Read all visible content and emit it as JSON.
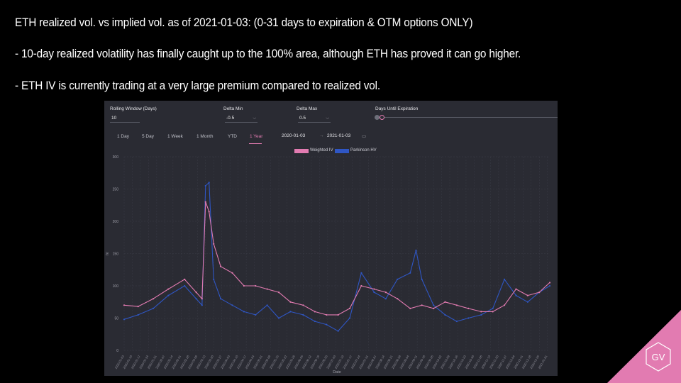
{
  "slide": {
    "line1": "ETH realized vol. vs implied vol. as of 2021-01-03: (0-31 days to expiration & OTM options ONLY)",
    "line2": "- 10-day realized volatility has finally caught up to the 100% area, although ETH has proved it can go higher.",
    "line3": "- ETH IV is currently trading at a very large premium compared to realized vol."
  },
  "controls": {
    "rolling_window_label": "Rolling Window (Days)",
    "rolling_window_value": "10",
    "delta_min_label": "Delta Min",
    "delta_min_value": "-0.5",
    "delta_max_label": "Delta Max",
    "delta_max_value": "0.5",
    "days_expiration_label": "Days Until Expiration"
  },
  "tabs": [
    "1 Day",
    "5 Day",
    "1 Week",
    "1 Month",
    "YTD",
    "1 Year"
  ],
  "active_tab": "1 Year",
  "date_range": {
    "start": "2020-01-03",
    "end": "2021-01-03"
  },
  "colors": {
    "weighted_iv": "#e27bb1",
    "parkinson_hv": "#2f56c4",
    "panel_bg": "#2a2b33",
    "accent": "#e27bb1"
  },
  "logo": {
    "text": "GV"
  },
  "chart_data": {
    "type": "line",
    "xlabel": "Date",
    "ylabel": "IV",
    "ylim": [
      0,
      300
    ],
    "yticks": [
      0,
      50,
      100,
      150,
      200,
      250,
      300
    ],
    "grid": true,
    "legend_position": "top-center",
    "x_range": [
      "2020-01-03",
      "2021-01-03"
    ],
    "series": [
      {
        "name": "Weighted IV",
        "x": [
          "2020-01-03",
          "2020-01-15",
          "2020-01-28",
          "2020-02-10",
          "2020-02-24",
          "2020-03-05",
          "2020-03-10",
          "2020-03-13",
          "2020-03-16",
          "2020-03-20",
          "2020-03-26",
          "2020-04-05",
          "2020-04-15",
          "2020-04-25",
          "2020-05-05",
          "2020-05-15",
          "2020-05-25",
          "2020-06-05",
          "2020-06-15",
          "2020-06-25",
          "2020-07-05",
          "2020-07-15",
          "2020-07-25",
          "2020-08-05",
          "2020-08-15",
          "2020-08-25",
          "2020-09-05",
          "2020-09-15",
          "2020-09-25",
          "2020-10-05",
          "2020-10-15",
          "2020-10-25",
          "2020-11-05",
          "2020-11-15",
          "2020-11-25",
          "2020-12-05",
          "2020-12-15",
          "2020-12-25",
          "2021-01-03"
        ],
        "values": [
          70,
          68,
          80,
          95,
          110,
          90,
          80,
          230,
          215,
          165,
          130,
          120,
          100,
          100,
          95,
          90,
          75,
          70,
          60,
          55,
          55,
          65,
          100,
          95,
          90,
          80,
          65,
          70,
          65,
          75,
          70,
          65,
          60,
          60,
          70,
          95,
          85,
          90,
          105
        ]
      },
      {
        "name": "Parkinson HV",
        "x": [
          "2020-01-03",
          "2020-01-15",
          "2020-01-28",
          "2020-02-10",
          "2020-02-24",
          "2020-03-05",
          "2020-03-10",
          "2020-03-13",
          "2020-03-16",
          "2020-03-20",
          "2020-03-26",
          "2020-04-05",
          "2020-04-15",
          "2020-04-25",
          "2020-05-05",
          "2020-05-15",
          "2020-05-25",
          "2020-06-05",
          "2020-06-15",
          "2020-06-25",
          "2020-07-05",
          "2020-07-15",
          "2020-07-25",
          "2020-08-05",
          "2020-08-15",
          "2020-08-25",
          "2020-09-05",
          "2020-09-10",
          "2020-09-15",
          "2020-09-25",
          "2020-10-05",
          "2020-10-15",
          "2020-10-25",
          "2020-11-05",
          "2020-11-15",
          "2020-11-25",
          "2020-12-05",
          "2020-12-15",
          "2020-12-25",
          "2021-01-03"
        ],
        "values": [
          48,
          55,
          65,
          85,
          100,
          80,
          70,
          255,
          260,
          110,
          80,
          70,
          60,
          55,
          70,
          50,
          60,
          55,
          45,
          40,
          30,
          50,
          120,
          90,
          80,
          110,
          120,
          155,
          110,
          70,
          55,
          45,
          50,
          55,
          65,
          110,
          85,
          75,
          90,
          100
        ]
      }
    ]
  }
}
